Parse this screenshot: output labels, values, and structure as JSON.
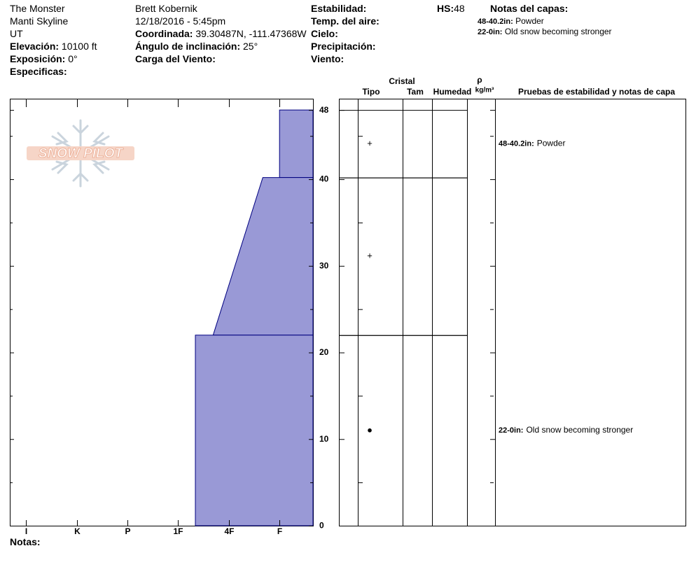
{
  "header": {
    "location": [
      "The Monster",
      "Manti Skyline",
      "UT"
    ],
    "elevation": {
      "label": "Elevación:",
      "value": "10100 ft"
    },
    "aspect": {
      "label": "Exposición:",
      "value": "0°"
    },
    "specifics": {
      "label": "Especificas:"
    },
    "observer": "Brett Kobernik",
    "datetime": "12/18/2016 - 5:45pm",
    "coordinates": {
      "label": "Coordinada:",
      "value": "39.30487N, -111.47368W"
    },
    "slope": {
      "label": "Ángulo de inclinación:",
      "value": "25°"
    },
    "wind_loading": {
      "label": "Carga del Viento:"
    },
    "stability": {
      "label": "Estabilidad:"
    },
    "air_temp": {
      "label": "Temp. del aire:"
    },
    "sky": {
      "label": "Cielo:"
    },
    "precipitation": {
      "label": "Precipitación:"
    },
    "wind": {
      "label": "Viento:"
    },
    "hs": {
      "label": "HS:",
      "value": "48"
    },
    "layer_notes_title": "Notas del capas:"
  },
  "notes_label": "Notas:",
  "logo": "SNOW PILOT",
  "columns": {
    "crystal": "Cristal",
    "type": "Tipo",
    "size": "Tam",
    "moisture": "Humedad",
    "density": "ρ",
    "density_unit": "kg/m³",
    "tests": "Pruebas de estabilidad y notas de capa"
  },
  "chart_data": {
    "type": "snow-profile",
    "xlim": [
      6.32,
      0.34
    ],
    "xticks": [
      {
        "value": 6,
        "label": "I"
      },
      {
        "value": 5,
        "label": "K"
      },
      {
        "value": 4,
        "label": "P"
      },
      {
        "value": 3,
        "label": "1F"
      },
      {
        "value": 2,
        "label": "4F"
      },
      {
        "value": 1,
        "label": "F"
      }
    ],
    "ylim": [
      0,
      49.3
    ],
    "yticks": [
      0,
      10,
      20,
      30,
      40,
      48
    ],
    "minor_yticks": [
      5,
      15,
      25,
      35,
      45
    ],
    "color": "#9999d6",
    "edge_color": "#000080",
    "layers": [
      {
        "top": 48,
        "bottom": 40.2,
        "hardness_top": 1,
        "hardness_bottom": 1,
        "grain_type": "+",
        "note_range": "48-40.2in:",
        "note": "Powder"
      },
      {
        "top": 40.2,
        "bottom": 22,
        "hardness_top": 1.33,
        "hardness_bottom": 2.31,
        "grain_type": "+"
      },
      {
        "top": 22,
        "bottom": 0,
        "hardness_top": 2.66,
        "hardness_bottom": 2.66,
        "grain_type": "●",
        "note_range": "22-0in:",
        "note": "Old snow becoming stronger"
      }
    ]
  }
}
